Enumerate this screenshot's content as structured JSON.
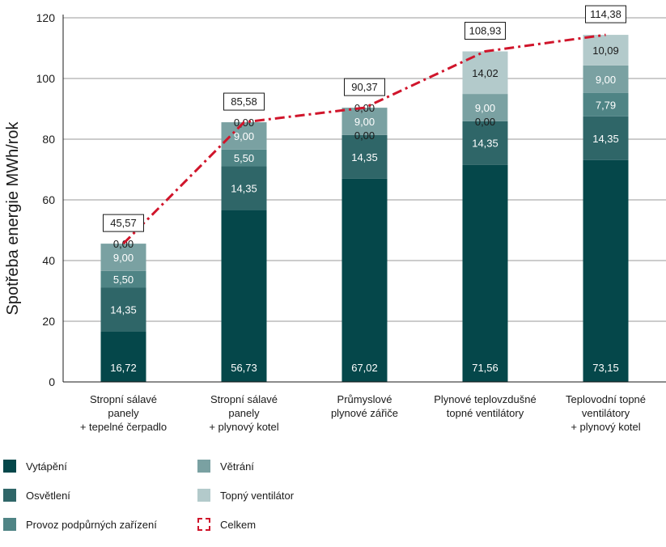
{
  "chart_data": {
    "type": "bar",
    "stacked": true,
    "ylabel": "Spotřeba energie MWh/rok",
    "ylim": [
      0,
      120
    ],
    "yticks": [
      "0",
      "20",
      "40",
      "60",
      "80",
      "100",
      "120"
    ],
    "grid": true,
    "legend_position": "bottom",
    "categories": [
      [
        "Stropní sálavé",
        "panely",
        "+ tepelné čerpadlo"
      ],
      [
        "Stropní sálavé",
        "panely",
        "+ plynový kotel"
      ],
      [
        "Průmyslové",
        "plynové zářiče"
      ],
      [
        "Plynové teplovzdušné",
        "topné ventilátory"
      ],
      [
        "Teplovodní topné",
        "ventilátory",
        "+ plynový kotel"
      ]
    ],
    "series": [
      {
        "name": "Vytápění",
        "color": "#05474a",
        "values": [
          16.72,
          56.73,
          67.02,
          71.56,
          73.15
        ],
        "labels": [
          "16,72",
          "56,73",
          "67,02",
          "71,56",
          "73,15"
        ]
      },
      {
        "name": "Osvětlení",
        "color": "#2f6668",
        "values": [
          14.35,
          14.35,
          14.35,
          14.35,
          14.35
        ],
        "labels": [
          "14,35",
          "14,35",
          "14,35",
          "14,35",
          "14,35"
        ]
      },
      {
        "name": "Provoz podpůrných zařízení",
        "color": "#4f8485",
        "values": [
          5.5,
          5.5,
          0.0,
          0.0,
          7.79
        ],
        "labels": [
          "5,50",
          "5,50",
          "0,00",
          "0,00",
          "7,79"
        ]
      },
      {
        "name": "Větrání",
        "color": "#7aa1a2",
        "values": [
          9.0,
          9.0,
          9.0,
          9.0,
          9.0
        ],
        "labels": [
          "9,00",
          "9,00",
          "9,00",
          "9,00",
          "9,00"
        ]
      },
      {
        "name": "Topný ventilátor",
        "color": "#b3cacb",
        "values": [
          0.0,
          0.0,
          0.0,
          14.02,
          10.09
        ],
        "labels": [
          "0,00",
          "0,00",
          "0,00",
          "14,02",
          "10,09"
        ]
      }
    ],
    "total": {
      "name": "Celkem",
      "color": "#d0152b",
      "values": [
        45.57,
        85.58,
        90.37,
        108.93,
        114.38
      ],
      "labels": [
        "45,57",
        "85,58",
        "90,37",
        "108,93",
        "114,38"
      ]
    }
  }
}
